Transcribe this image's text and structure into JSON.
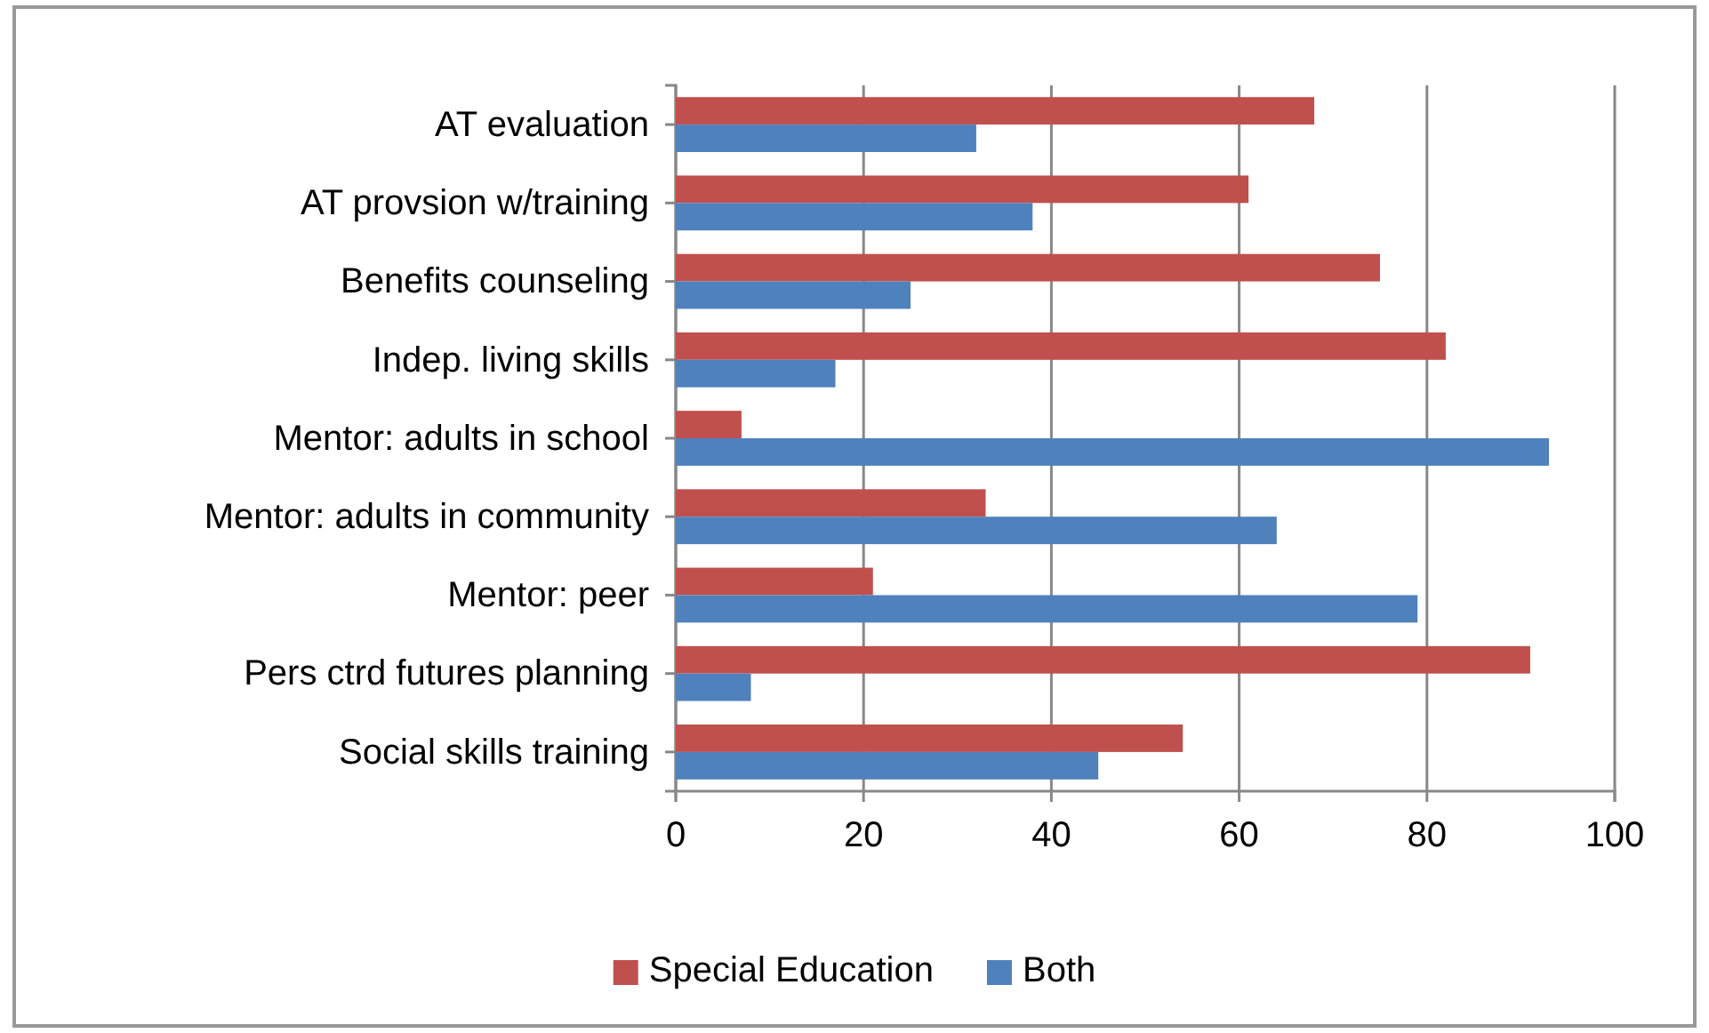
{
  "chart_data": {
    "type": "bar",
    "orientation": "horizontal",
    "categories": [
      "AT evaluation",
      "AT provsion w/training",
      "Benefits counseling",
      "Indep. living skills",
      "Mentor: adults in school",
      "Mentor: adults in community",
      "Mentor: peer",
      "Pers ctrd futures planning",
      "Social skills training"
    ],
    "series": [
      {
        "name": "Special Education",
        "color": "#c0504d",
        "values": [
          68,
          61,
          75,
          82,
          7,
          33,
          21,
          91,
          54
        ]
      },
      {
        "name": "Both",
        "color": "#4f81bd",
        "values": [
          32,
          38,
          25,
          17,
          93,
          64,
          79,
          8,
          45
        ]
      }
    ],
    "xlim": [
      0,
      100
    ],
    "xticks": [
      0,
      20,
      40,
      60,
      80,
      100
    ],
    "grid": "x",
    "legend": "bottom"
  }
}
